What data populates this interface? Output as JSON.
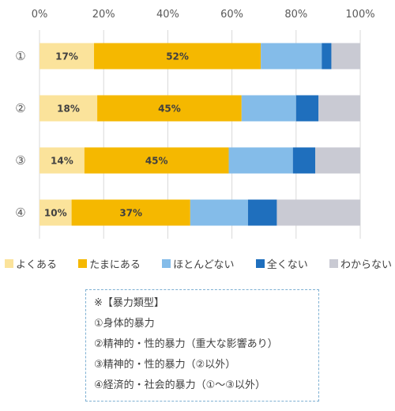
{
  "chart_data": {
    "type": "bar",
    "orientation": "horizontal",
    "stacked": true,
    "percent": true,
    "x_ticks": [
      "0%",
      "20%",
      "40%",
      "60%",
      "80%",
      "100%"
    ],
    "xlim": [
      0,
      100
    ],
    "categories": [
      "①",
      "②",
      "③",
      "④"
    ],
    "series": [
      {
        "name": "よくある",
        "color": "#fbe39b",
        "values": [
          17,
          18,
          14,
          10
        ],
        "labels": [
          "17%",
          "18%",
          "14%",
          "10%"
        ]
      },
      {
        "name": "たまにある",
        "color": "#f5b800",
        "values": [
          52,
          45,
          45,
          37
        ],
        "labels": [
          "52%",
          "45%",
          "45%",
          "37%"
        ]
      },
      {
        "name": "ほとんどない",
        "color": "#84bce9",
        "values": [
          19,
          17,
          20,
          18
        ],
        "labels": [
          "",
          "",
          "",
          ""
        ]
      },
      {
        "name": "全くない",
        "color": "#1f6fbd",
        "values": [
          3,
          7,
          7,
          9
        ],
        "labels": [
          "",
          "",
          "",
          ""
        ]
      },
      {
        "name": "わからない",
        "color": "#c9cad3",
        "values": [
          9,
          13,
          14,
          26
        ],
        "labels": [
          "",
          "",
          "",
          ""
        ]
      }
    ],
    "grid": true,
    "legend_position": "bottom"
  },
  "note": {
    "title": "※【暴力類型】",
    "items": [
      "①身体的暴力",
      "②精神的・性的暴力（重大な影響あり）",
      "③精神的・性的暴力（②以外）",
      "④経済的・社会的暴力（①～③以外）"
    ]
  }
}
